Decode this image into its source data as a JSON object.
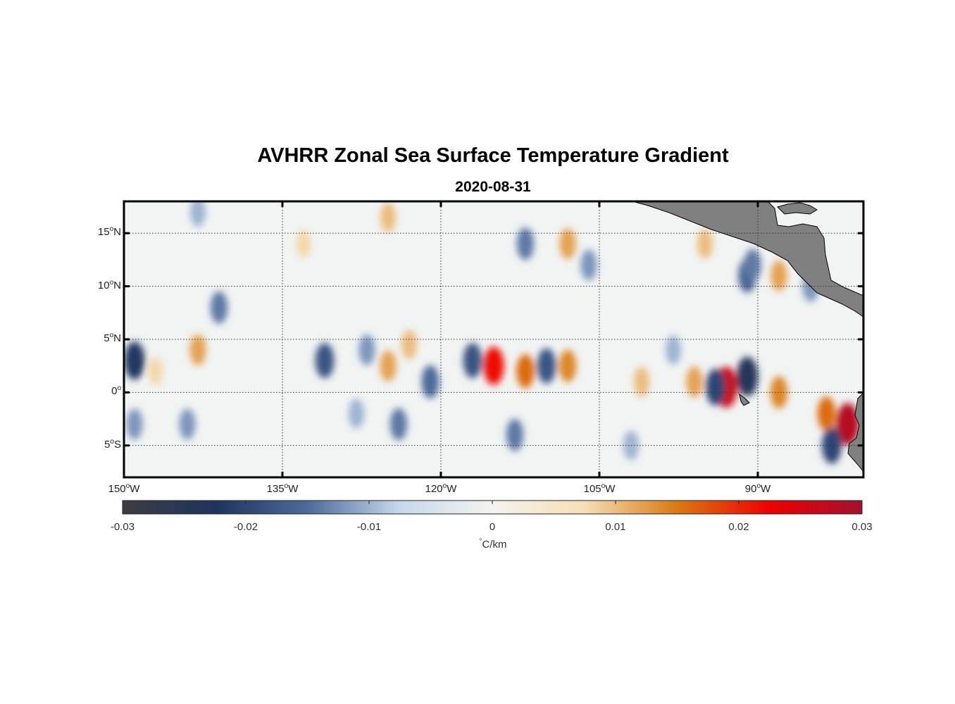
{
  "title": "AVHRR Zonal Sea Surface Temperature Gradient",
  "subtitle": "2020-08-31",
  "map": {
    "lon_range": [
      -150,
      -80
    ],
    "lat_range": [
      -8,
      18
    ],
    "lat_ticks": [
      {
        "value": 15,
        "num": "15",
        "deg": "o",
        "hem": "N"
      },
      {
        "value": 10,
        "num": "10",
        "deg": "o",
        "hem": "N"
      },
      {
        "value": 5,
        "num": "5",
        "deg": "o",
        "hem": "N"
      },
      {
        "value": 0,
        "num": "0",
        "deg": "o",
        "hem": ""
      },
      {
        "value": -5,
        "num": "5",
        "deg": "o",
        "hem": "S"
      }
    ],
    "lon_ticks": [
      {
        "value": -150,
        "num": "150",
        "deg": "o",
        "hem": "W"
      },
      {
        "value": -135,
        "num": "135",
        "deg": "o",
        "hem": "W"
      },
      {
        "value": -120,
        "num": "120",
        "deg": "o",
        "hem": "W"
      },
      {
        "value": -105,
        "num": "105",
        "deg": "o",
        "hem": "W"
      },
      {
        "value": -90,
        "num": "90",
        "deg": "o",
        "hem": "W"
      }
    ],
    "land_color": "#808080",
    "gridline_style": "dotted",
    "anomalies": [
      {
        "lon": -149,
        "lat": 3,
        "value": -0.022
      },
      {
        "lon": -143,
        "lat": 4,
        "value": 0.012
      },
      {
        "lon": -147,
        "lat": 2,
        "value": 0.008
      },
      {
        "lon": -144,
        "lat": -3,
        "value": -0.012
      },
      {
        "lon": -149,
        "lat": -3,
        "value": -0.012
      },
      {
        "lon": -141,
        "lat": 8,
        "value": -0.014
      },
      {
        "lon": -143,
        "lat": 17,
        "value": -0.01
      },
      {
        "lon": -131,
        "lat": 3,
        "value": -0.018
      },
      {
        "lon": -127,
        "lat": 4,
        "value": -0.012
      },
      {
        "lon": -125,
        "lat": 2.5,
        "value": 0.012
      },
      {
        "lon": -123,
        "lat": 4.5,
        "value": 0.01
      },
      {
        "lon": -124,
        "lat": -3,
        "value": -0.014
      },
      {
        "lon": -128,
        "lat": -2,
        "value": -0.01
      },
      {
        "lon": -125,
        "lat": 16.5,
        "value": 0.01
      },
      {
        "lon": -133,
        "lat": 14,
        "value": 0.008
      },
      {
        "lon": -121,
        "lat": 1,
        "value": -0.015
      },
      {
        "lon": -117,
        "lat": 3,
        "value": -0.018
      },
      {
        "lon": -115,
        "lat": 2.5,
        "value": 0.022
      },
      {
        "lon": -112,
        "lat": 2,
        "value": 0.016
      },
      {
        "lon": -110,
        "lat": 2.5,
        "value": -0.018
      },
      {
        "lon": -108,
        "lat": 2.5,
        "value": 0.014
      },
      {
        "lon": -112,
        "lat": 14,
        "value": -0.014
      },
      {
        "lon": -108,
        "lat": 14,
        "value": 0.012
      },
      {
        "lon": -106,
        "lat": 12,
        "value": -0.012
      },
      {
        "lon": -113,
        "lat": -4,
        "value": -0.014
      },
      {
        "lon": -101,
        "lat": 1,
        "value": 0.01
      },
      {
        "lon": -96,
        "lat": 1,
        "value": 0.012
      },
      {
        "lon": -93,
        "lat": 0.5,
        "value": 0.026
      },
      {
        "lon": -94,
        "lat": 0.5,
        "value": -0.02
      },
      {
        "lon": -91,
        "lat": 1.5,
        "value": -0.024
      },
      {
        "lon": -88,
        "lat": 0,
        "value": 0.014
      },
      {
        "lon": -88,
        "lat": 11,
        "value": 0.012
      },
      {
        "lon": -85,
        "lat": 10,
        "value": -0.012
      },
      {
        "lon": -91,
        "lat": 11,
        "value": -0.016
      },
      {
        "lon": -95,
        "lat": 14,
        "value": 0.01
      },
      {
        "lon": -90.5,
        "lat": 12,
        "value": -0.014
      },
      {
        "lon": -81.5,
        "lat": -3,
        "value": 0.028
      },
      {
        "lon": -83,
        "lat": -5,
        "value": -0.02
      },
      {
        "lon": -83.5,
        "lat": -2,
        "value": 0.016
      },
      {
        "lon": -98,
        "lat": 4,
        "value": -0.01
      },
      {
        "lon": -102,
        "lat": -5,
        "value": -0.01
      }
    ]
  },
  "colorbar": {
    "range": [
      -0.03,
      0.03
    ],
    "ticks": [
      "-0.03",
      "-0.02",
      "-0.01",
      "0",
      "0.01",
      "0.02",
      "0.03"
    ],
    "unit_deg": "°",
    "unit_text": "C/km",
    "colors": [
      "#3c3d40",
      "#1f3360",
      "#4e6a9a",
      "#c6d9ee",
      "#f4f4ee",
      "#f6dfb6",
      "#d97a12",
      "#ee0000",
      "#a0122e"
    ]
  }
}
